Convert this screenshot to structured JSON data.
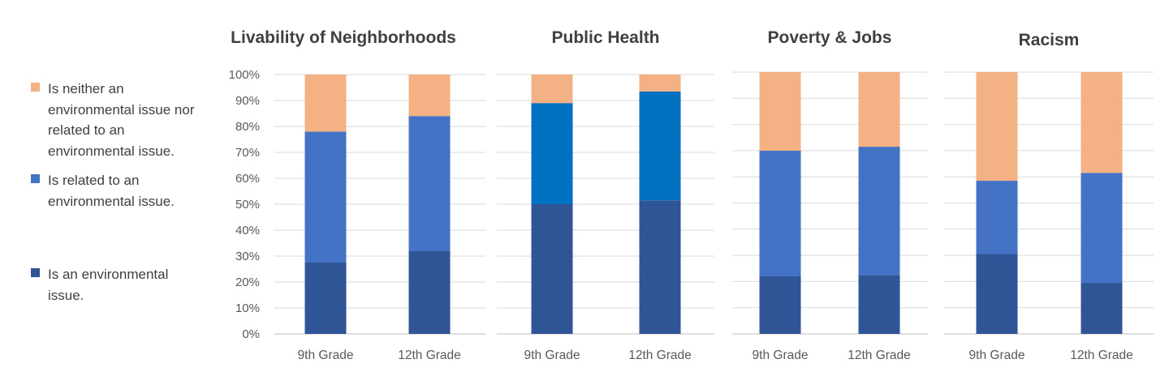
{
  "legend": [
    {
      "label": "Is neither an environmental issue nor related to an environmental issue.",
      "color": "#F4B183"
    },
    {
      "label": "Is related to an environmental issue.",
      "color": "#4472C4"
    },
    {
      "label": "Is an environmental issue.",
      "color": "#2F5597"
    }
  ],
  "chart_data": [
    {
      "type": "bar",
      "stacked": true,
      "title": "Livability of Neighborhoods",
      "categories": [
        "9th Grade",
        "12th Grade"
      ],
      "ylim": [
        0,
        100
      ],
      "yticks": [
        "0%",
        "10%",
        "20%",
        "30%",
        "40%",
        "50%",
        "60%",
        "70%",
        "80%",
        "90%",
        "100%"
      ],
      "grid": true,
      "series": [
        {
          "name": "Is an environmental issue.",
          "values": [
            27.5,
            32
          ],
          "color": "#2F5597"
        },
        {
          "name": "Is related to an environmental issue.",
          "values": [
            50.5,
            52
          ],
          "color": "#4472C4"
        },
        {
          "name": "Is neither an environmental issue nor related to an environmental issue.",
          "values": [
            22,
            16
          ],
          "color": "#F4B183"
        }
      ]
    },
    {
      "type": "bar",
      "stacked": true,
      "title": "Public Health",
      "categories": [
        "9th Grade",
        "12th Grade"
      ],
      "ylim": [
        0,
        100
      ],
      "grid": true,
      "series": [
        {
          "name": "Is an environmental issue.",
          "values": [
            50,
            51.5
          ],
          "color": "#2F5597"
        },
        {
          "name": "Is related to an environmental issue.",
          "values": [
            39,
            42
          ],
          "color": "#0070C0"
        },
        {
          "name": "Is neither an environmental issue nor related to an environmental issue.",
          "values": [
            11,
            6.5
          ],
          "color": "#F4B183"
        }
      ]
    },
    {
      "type": "bar",
      "stacked": true,
      "title": "Poverty & Jobs",
      "categories": [
        "9th Grade",
        "12th Grade"
      ],
      "ylim": [
        0,
        100
      ],
      "grid": true,
      "series": [
        {
          "name": "Is an environmental issue.",
          "values": [
            22,
            22.5
          ],
          "color": "#2F5597"
        },
        {
          "name": "Is related to an environmental issue.",
          "values": [
            48,
            49
          ],
          "color": "#4472C4"
        },
        {
          "name": "Is neither an environmental issue nor related to an environmental issue.",
          "values": [
            30,
            28.5
          ],
          "color": "#F4B183"
        }
      ]
    },
    {
      "type": "bar",
      "stacked": true,
      "title": "Racism",
      "categories": [
        "9th Grade",
        "12th Grade"
      ],
      "ylim": [
        0,
        100
      ],
      "grid": true,
      "series": [
        {
          "name": "Is an environmental issue.",
          "values": [
            30.5,
            19.5
          ],
          "color": "#2F5597"
        },
        {
          "name": "Is related to an environmental issue.",
          "values": [
            28,
            42
          ],
          "color": "#4472C4"
        },
        {
          "name": "Is neither an environmental issue nor related to an environmental issue.",
          "values": [
            41.5,
            38.5
          ],
          "color": "#F4B183"
        }
      ]
    }
  ]
}
